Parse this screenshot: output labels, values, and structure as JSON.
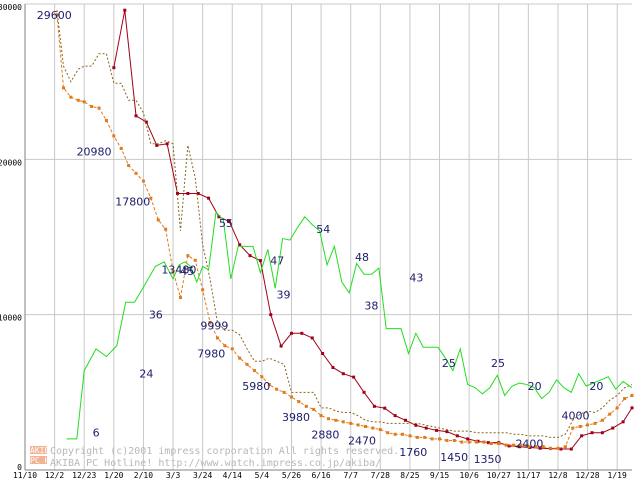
{
  "chart_data": {
    "type": "line",
    "xlabel": "",
    "ylabel": "",
    "ylim": [
      0,
      30000
    ],
    "y_ticks": [
      "0",
      "10000",
      "20000",
      "30000"
    ],
    "x_ticks": [
      "11/10",
      "12/2",
      "12/23",
      "1/20",
      "2/10",
      "3/3",
      "3/24",
      "4/14",
      "5/4",
      "5/26",
      "6/16",
      "7/7",
      "7/28",
      "8/25",
      "9/15",
      "10/6",
      "10/27",
      "11/17",
      "12/8",
      "12/28",
      "1/19"
    ],
    "grid": true,
    "series": [
      {
        "name": "price-low",
        "color": "#a00018",
        "style": "solid-markers",
        "x": [
          3.0,
          3.37,
          3.75,
          4.1,
          4.45,
          4.8,
          5.15,
          5.5,
          5.85,
          6.2,
          6.55,
          6.9,
          7.25,
          7.6,
          7.95,
          8.3,
          8.65,
          9.0,
          9.35,
          9.7,
          10.05,
          10.4,
          10.75,
          11.1,
          11.45,
          11.8,
          12.15,
          12.5,
          12.85,
          13.2,
          13.55,
          13.9,
          14.25,
          14.6,
          14.95,
          15.3,
          15.65,
          16.0,
          16.35,
          16.7,
          17.05,
          17.4,
          17.75,
          18.1,
          18.45,
          18.8,
          19.15,
          19.5,
          19.85,
          20.2,
          20.5
        ],
        "y": [
          25900,
          29600,
          22800,
          22400,
          20900,
          21000,
          17800,
          17800,
          17800,
          17500,
          16300,
          16000,
          14500,
          13800,
          13480,
          9999,
          7980,
          8800,
          8800,
          8500,
          7500,
          6600,
          6200,
          5980,
          5000,
          4100,
          3980,
          3500,
          3200,
          2880,
          2700,
          2550,
          2470,
          2200,
          2000,
          1850,
          1760,
          1760,
          1550,
          1500,
          1450,
          1400,
          1380,
          1350,
          1350,
          2200,
          2400,
          2400,
          2700,
          3100,
          4000
        ]
      },
      {
        "name": "price-average",
        "color": "#e07a1a",
        "style": "dashed-markers",
        "x": [
          1.08,
          1.3,
          1.55,
          1.8,
          2.0,
          2.25,
          2.5,
          2.75,
          3.0,
          3.25,
          3.5,
          3.75,
          4.0,
          4.25,
          4.5,
          4.75,
          5.0,
          5.25,
          5.5,
          5.75,
          6.0,
          6.25,
          6.5,
          6.75,
          7.0,
          7.25,
          7.5,
          7.75,
          8.0,
          8.25,
          8.5,
          8.75,
          9.0,
          9.25,
          9.5,
          9.75,
          10.0,
          10.25,
          10.5,
          10.75,
          11.0,
          11.25,
          11.5,
          11.75,
          12.0,
          12.25,
          12.5,
          12.75,
          13.0,
          13.25,
          13.5,
          13.75,
          14.0,
          14.25,
          14.5,
          14.75,
          15.0,
          15.25,
          15.5,
          15.75,
          16.0,
          16.25,
          16.5,
          16.75,
          17.0,
          17.25,
          17.5,
          17.75,
          18.0,
          18.25,
          18.5,
          18.75,
          19.0,
          19.25,
          19.5,
          19.75,
          20.0,
          20.25,
          20.5
        ],
        "y": [
          29300,
          24600,
          24000,
          23800,
          23700,
          23400,
          23300,
          22500,
          21500,
          20700,
          19600,
          19100,
          18600,
          17500,
          16100,
          15500,
          12800,
          11100,
          13800,
          13500,
          11600,
          9500,
          8500,
          8000,
          7800,
          7200,
          6800,
          6400,
          6000,
          5500,
          5200,
          5000,
          4700,
          4400,
          4100,
          3900,
          3500,
          3300,
          3200,
          3100,
          3000,
          2900,
          2800,
          2700,
          2600,
          2400,
          2300,
          2300,
          2200,
          2100,
          2100,
          2000,
          2000,
          1900,
          1900,
          1800,
          1800,
          1800,
          1800,
          1700,
          1700,
          1600,
          1600,
          1600,
          1500,
          1500,
          1500,
          1400,
          1400,
          1500,
          2700,
          2800,
          2900,
          3000,
          3200,
          3600,
          4000,
          4600,
          4800
        ]
      },
      {
        "name": "price-high",
        "color": "#8a6418",
        "style": "dotted",
        "x": [
          1.08,
          1.3,
          1.55,
          1.8,
          2.0,
          2.25,
          2.5,
          2.75,
          3.0,
          3.25,
          3.5,
          3.75,
          4.0,
          4.25,
          4.5,
          4.75,
          5.0,
          5.25,
          5.5,
          5.75,
          6.0,
          6.25,
          6.5,
          6.75,
          7.0,
          7.25,
          7.5,
          7.75,
          8.0,
          8.25,
          8.5,
          8.75,
          9.0,
          9.25,
          9.5,
          9.75,
          10.0,
          10.25,
          10.5,
          10.75,
          11.0,
          11.25,
          11.5,
          11.75,
          12.0,
          12.25,
          12.5,
          12.75,
          13.0,
          13.25,
          13.5,
          13.75,
          14.0,
          14.25,
          14.5,
          14.75,
          15.0,
          15.25,
          15.5,
          15.75,
          16.0,
          16.25,
          16.5,
          16.75,
          17.0,
          17.25,
          17.5,
          17.75,
          18.0,
          18.25,
          18.5,
          18.75,
          19.0,
          19.25,
          19.5,
          19.75,
          20.0,
          20.25,
          20.5
        ],
        "y": [
          29600,
          26000,
          25000,
          25800,
          26000,
          26000,
          26800,
          26800,
          24900,
          24900,
          23800,
          23800,
          23000,
          21000,
          21000,
          21200,
          21000,
          15400,
          20900,
          18800,
          14500,
          12300,
          9500,
          9000,
          9000,
          8700,
          7800,
          7000,
          7000,
          7200,
          7000,
          6800,
          5000,
          5000,
          5000,
          5000,
          4000,
          4000,
          3800,
          3700,
          3700,
          3500,
          3200,
          3100,
          3100,
          3000,
          3000,
          3000,
          3000,
          3000,
          2900,
          2800,
          2700,
          2600,
          2500,
          2500,
          2500,
          2400,
          2400,
          2400,
          2400,
          2400,
          2300,
          2300,
          2200,
          2200,
          2200,
          2100,
          2100,
          2300,
          3200,
          3600,
          3800,
          3700,
          4000,
          4500,
          4800,
          5300,
          5500
        ]
      },
      {
        "name": "shop-count",
        "color": "#22dd22",
        "style": "solid",
        "x": [
          1.4,
          1.75,
          2.0,
          2.4,
          2.75,
          3.1,
          3.4,
          3.7,
          4.1,
          4.4,
          4.7,
          5.0,
          5.2,
          5.4,
          5.6,
          5.8,
          6.0,
          6.2,
          6.45,
          6.7,
          6.95,
          7.2,
          7.45,
          7.7,
          7.95,
          8.2,
          8.45,
          8.7,
          8.95,
          9.2,
          9.45,
          9.7,
          9.95,
          10.2,
          10.45,
          10.7,
          10.95,
          11.2,
          11.45,
          11.7,
          11.95,
          12.2,
          12.45,
          12.7,
          12.95,
          13.2,
          13.45,
          13.7,
          13.95,
          14.2,
          14.45,
          14.7,
          14.95,
          15.2,
          15.45,
          15.7,
          15.95,
          16.2,
          16.45,
          16.7,
          16.95,
          17.2,
          17.45,
          17.7,
          17.95,
          18.2,
          18.45,
          18.7,
          18.95,
          19.2,
          19.45,
          19.7,
          19.95,
          20.2,
          20.5
        ],
        "y": [
          2000,
          2000,
          6400,
          7800,
          7300,
          8000,
          10800,
          10800,
          12100,
          13100,
          13400,
          12300,
          13200,
          13400,
          13100,
          12100,
          13100,
          12900,
          16600,
          16100,
          12300,
          14400,
          14400,
          14400,
          12700,
          14200,
          11700,
          14900,
          14800,
          15600,
          16300,
          15800,
          15400,
          13200,
          14400,
          12100,
          11400,
          13300,
          12600,
          12600,
          13000,
          9100,
          9100,
          9100,
          7500,
          8800,
          7900,
          7900,
          7900,
          7200,
          6400,
          7800,
          5500,
          5300,
          4900,
          5300,
          6100,
          4800,
          5400,
          5600,
          5500,
          5300,
          4600,
          5000,
          5800,
          5300,
          5000,
          6200,
          5400,
          5600,
          5800,
          6000,
          5200,
          5700,
          5300
        ]
      }
    ],
    "data_labels_red": [
      {
        "text": "29600",
        "x": 1.4,
        "y": 29300
      },
      {
        "text": "20980",
        "x": 3.3,
        "y": 20500
      },
      {
        "text": "17800",
        "x": 5.15,
        "y": 17300
      },
      {
        "text": "13480",
        "x": 7.35,
        "y": 12900
      },
      {
        "text": "9999",
        "x": 9.05,
        "y": 9300
      },
      {
        "text": "7980",
        "x": 8.9,
        "y": 7500
      },
      {
        "text": "5980",
        "x": 11.05,
        "y": 5400
      },
      {
        "text": "3980",
        "x": 12.95,
        "y": 3400
      },
      {
        "text": "2880",
        "x": 14.35,
        "y": 2300
      },
      {
        "text": "2470",
        "x": 16.1,
        "y": 1900
      },
      {
        "text": "1760",
        "x": 18.55,
        "y": 1150
      },
      {
        "text": "1450",
        "x": 20.5,
        "y": 850
      },
      {
        "text": "1350",
        "x": 22.1,
        "y": 700
      },
      {
        "text": "2400",
        "x": 24.1,
        "y": 1700
      },
      {
        "text": "4000",
        "x": 26.3,
        "y": 3500
      }
    ],
    "data_labels_green": [
      {
        "text": "6",
        "x": 3.4,
        "y": 2400
      },
      {
        "text": "24",
        "x": 5.8,
        "y": 6200
      },
      {
        "text": "36",
        "x": 6.25,
        "y": 10000
      },
      {
        "text": "45",
        "x": 7.75,
        "y": 12800
      },
      {
        "text": "55",
        "x": 9.6,
        "y": 15900
      },
      {
        "text": "47",
        "x": 12.05,
        "y": 13500
      },
      {
        "text": "39",
        "x": 12.35,
        "y": 11300
      },
      {
        "text": "54",
        "x": 14.25,
        "y": 15500
      },
      {
        "text": "48",
        "x": 16.1,
        "y": 13700
      },
      {
        "text": "38",
        "x": 16.55,
        "y": 10600
      },
      {
        "text": "43",
        "x": 18.7,
        "y": 12400
      },
      {
        "text": "25",
        "x": 20.25,
        "y": 6900
      },
      {
        "text": "25",
        "x": 22.6,
        "y": 6900
      },
      {
        "text": "20",
        "x": 24.35,
        "y": 5400
      },
      {
        "text": "20",
        "x": 27.3,
        "y": 5400
      }
    ],
    "x_tick_positions": [
      0,
      1,
      2,
      3,
      4,
      5,
      6,
      7,
      8,
      9,
      10,
      11,
      12,
      13,
      14,
      15,
      16,
      17,
      18,
      19,
      20
    ],
    "x_domain": [
      0,
      20.5
    ],
    "label_x_scale": 29.0
  },
  "credit": {
    "logo_top": "AKIBA",
    "logo_bottom": "PC Hotline!",
    "line1": "Copyright (c)2001 impress corporation All rights reserved.",
    "line2": "AKIBA PC Hotline!  http://www.watch.impress.co.jp/akiba/"
  }
}
